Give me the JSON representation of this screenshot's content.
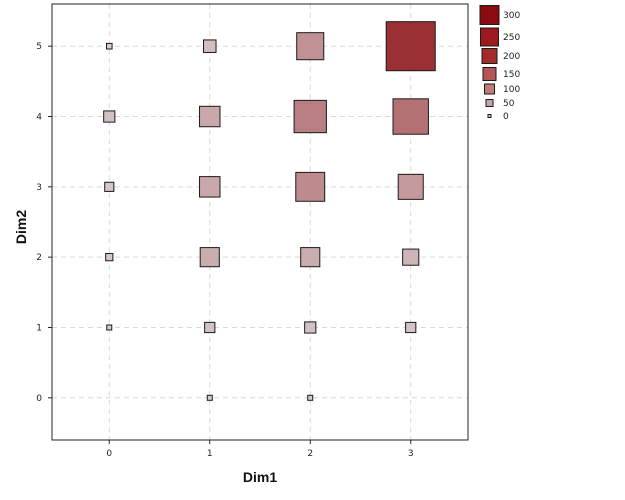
{
  "chart_data": {
    "type": "heatmap",
    "xlabel": "Dim1",
    "ylabel": "Dim2",
    "x_ticks": [
      "0",
      "1",
      "2",
      "3"
    ],
    "y_ticks": [
      "0",
      "1",
      "2",
      "3",
      "4",
      "5"
    ],
    "xlim": [
      -0.57,
      3.57
    ],
    "ylim": [
      -0.6,
      5.6
    ],
    "grid": true,
    "legend_position": "right",
    "size_max_value": 300,
    "color_min": "#d8d0d2",
    "color_max": "#8b0a0f",
    "points": [
      {
        "x": 0,
        "y": 1,
        "value": 2
      },
      {
        "x": 0,
        "y": 2,
        "value": 5
      },
      {
        "x": 0,
        "y": 3,
        "value": 8
      },
      {
        "x": 0,
        "y": 4,
        "value": 12
      },
      {
        "x": 0,
        "y": 5,
        "value": 3
      },
      {
        "x": 1,
        "y": 0,
        "value": 2
      },
      {
        "x": 1,
        "y": 1,
        "value": 10
      },
      {
        "x": 1,
        "y": 2,
        "value": 35
      },
      {
        "x": 1,
        "y": 3,
        "value": 40
      },
      {
        "x": 1,
        "y": 4,
        "value": 40
      },
      {
        "x": 1,
        "y": 5,
        "value": 15
      },
      {
        "x": 2,
        "y": 0,
        "value": 2
      },
      {
        "x": 2,
        "y": 1,
        "value": 12
      },
      {
        "x": 2,
        "y": 2,
        "value": 35
      },
      {
        "x": 2,
        "y": 3,
        "value": 80
      },
      {
        "x": 2,
        "y": 4,
        "value": 100
      },
      {
        "x": 2,
        "y": 5,
        "value": 70
      },
      {
        "x": 3,
        "y": 1,
        "value": 10
      },
      {
        "x": 3,
        "y": 2,
        "value": 25
      },
      {
        "x": 3,
        "y": 3,
        "value": 60
      },
      {
        "x": 3,
        "y": 4,
        "value": 120
      },
      {
        "x": 3,
        "y": 5,
        "value": 230
      }
    ],
    "legend": [
      {
        "label": "300",
        "value": 300,
        "color": "#8b0a0f"
      },
      {
        "label": "250",
        "value": 250,
        "color": "#9c1a1e"
      },
      {
        "label": "200",
        "value": 200,
        "color": "#a52a2a"
      },
      {
        "label": "150",
        "value": 150,
        "color": "#b55558"
      },
      {
        "label": "100",
        "value": 100,
        "color": "#c27a7d"
      },
      {
        "label": "50",
        "value": 50,
        "color": "#c9a4a6"
      },
      {
        "label": "0",
        "value": 0,
        "color": "#d8d0d2"
      }
    ]
  }
}
